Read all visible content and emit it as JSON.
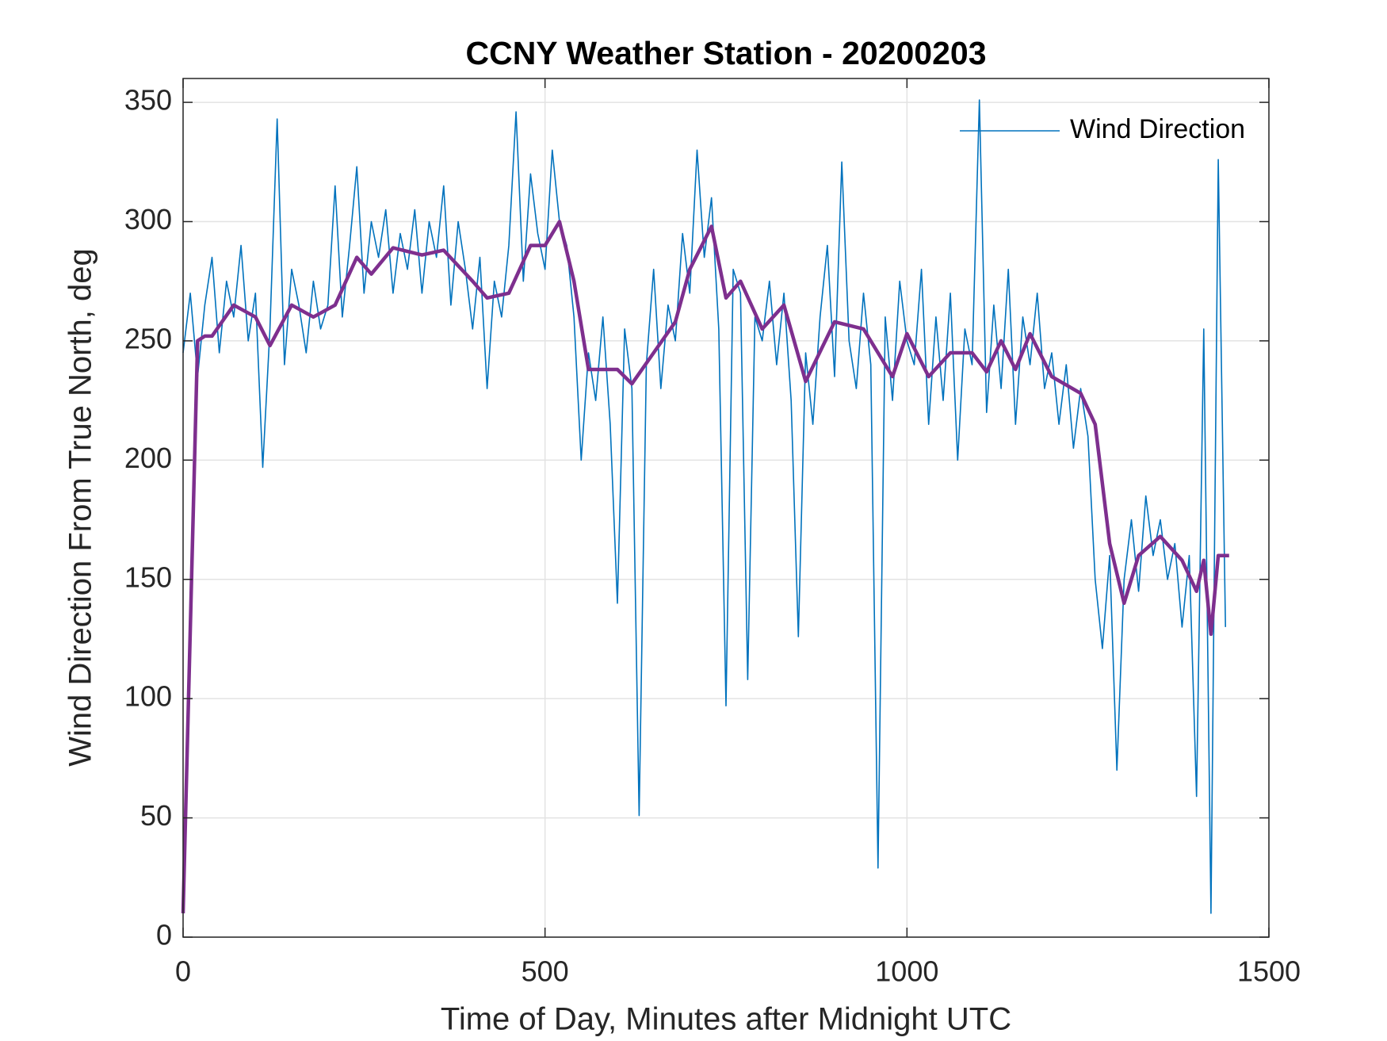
{
  "chart_data": {
    "type": "line",
    "title": "CCNY Weather Station - 20200203",
    "xlabel": "Time of Day, Minutes after Midnight UTC",
    "ylabel": "Wind Direction From True North, deg",
    "xlim": [
      0,
      1500
    ],
    "ylim": [
      0,
      360
    ],
    "xticks": [
      0,
      500,
      1000,
      1500
    ],
    "yticks": [
      0,
      50,
      100,
      150,
      200,
      250,
      300,
      350
    ],
    "grid": true,
    "legend": "northeast",
    "series": [
      {
        "name": "Wind Direction",
        "color": "#0072bd",
        "x": [
          0,
          10,
          20,
          30,
          40,
          50,
          60,
          70,
          80,
          90,
          100,
          110,
          120,
          130,
          140,
          150,
          160,
          170,
          180,
          190,
          200,
          210,
          220,
          230,
          240,
          250,
          260,
          270,
          280,
          290,
          300,
          310,
          320,
          330,
          340,
          350,
          360,
          370,
          380,
          390,
          400,
          410,
          420,
          430,
          440,
          450,
          460,
          470,
          480,
          490,
          500,
          510,
          520,
          530,
          540,
          550,
          560,
          570,
          580,
          590,
          600,
          610,
          620,
          630,
          640,
          650,
          660,
          670,
          680,
          690,
          700,
          710,
          720,
          730,
          740,
          750,
          760,
          770,
          780,
          790,
          800,
          810,
          820,
          830,
          840,
          850,
          860,
          870,
          880,
          890,
          900,
          910,
          920,
          930,
          940,
          950,
          960,
          970,
          980,
          990,
          1000,
          1010,
          1020,
          1030,
          1040,
          1050,
          1060,
          1070,
          1080,
          1090,
          1100,
          1110,
          1120,
          1130,
          1140,
          1150,
          1160,
          1170,
          1180,
          1190,
          1200,
          1210,
          1220,
          1230,
          1240,
          1250,
          1260,
          1270,
          1280,
          1290,
          1300,
          1310,
          1320,
          1330,
          1340,
          1350,
          1360,
          1370,
          1380,
          1390,
          1400,
          1410,
          1420,
          1430,
          1440
        ],
        "values": [
          245,
          270,
          235,
          265,
          285,
          245,
          275,
          260,
          290,
          250,
          270,
          197,
          255,
          343,
          240,
          280,
          265,
          245,
          275,
          255,
          265,
          315,
          260,
          290,
          323,
          270,
          300,
          285,
          305,
          270,
          295,
          280,
          305,
          270,
          300,
          285,
          315,
          265,
          300,
          280,
          255,
          285,
          230,
          275,
          260,
          290,
          346,
          275,
          320,
          295,
          280,
          330,
          300,
          290,
          260,
          200,
          245,
          225,
          260,
          215,
          140,
          255,
          230,
          51,
          240,
          280,
          230,
          265,
          250,
          295,
          270,
          330,
          285,
          310,
          255,
          97,
          280,
          270,
          108,
          260,
          250,
          275,
          240,
          270,
          225,
          126,
          245,
          215,
          260,
          290,
          235,
          325,
          250,
          230,
          270,
          240,
          29,
          260,
          225,
          275,
          250,
          240,
          280,
          215,
          260,
          225,
          270,
          200,
          255,
          240,
          351,
          220,
          265,
          230,
          280,
          215,
          260,
          240,
          270,
          230,
          245,
          215,
          240,
          205,
          230,
          210,
          150,
          121,
          160,
          70,
          150,
          175,
          145,
          185,
          160,
          175,
          150,
          165,
          130,
          160,
          59,
          255,
          10,
          326,
          130
        ]
      },
      {
        "color": "#7e2f8e",
        "x": [
          0,
          20,
          30,
          40,
          70,
          100,
          120,
          150,
          180,
          210,
          240,
          260,
          290,
          330,
          360,
          400,
          420,
          450,
          480,
          500,
          520,
          540,
          560,
          600,
          620,
          650,
          680,
          700,
          730,
          750,
          770,
          800,
          830,
          860,
          900,
          940,
          960,
          980,
          1000,
          1030,
          1060,
          1090,
          1110,
          1130,
          1150,
          1170,
          1200,
          1240,
          1260,
          1280,
          1300,
          1320,
          1350,
          1380,
          1400,
          1410,
          1420,
          1430,
          1445
        ],
        "values": [
          10,
          250,
          252,
          252,
          265,
          260,
          248,
          265,
          260,
          265,
          285,
          278,
          289,
          286,
          288,
          275,
          268,
          270,
          290,
          290,
          300,
          275,
          238,
          238,
          232,
          245,
          258,
          280,
          298,
          268,
          275,
          255,
          265,
          233,
          258,
          255,
          245,
          235,
          253,
          235,
          245,
          245,
          237,
          250,
          238,
          253,
          235,
          228,
          215,
          165,
          140,
          160,
          168,
          158,
          145,
          158,
          127,
          160,
          160
        ]
      }
    ]
  }
}
